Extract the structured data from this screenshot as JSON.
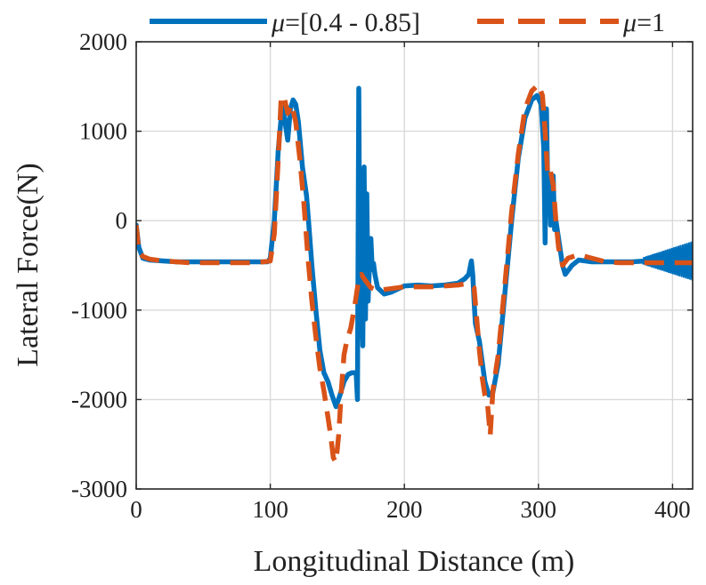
{
  "chart_data": {
    "type": "line",
    "title": "",
    "xlabel": "Longitudinal Distance (m)",
    "ylabel": "Lateral Force(N)",
    "xlim": [
      0,
      415
    ],
    "ylim": [
      -3000,
      2000
    ],
    "xticks": [
      0,
      100,
      200,
      300,
      400
    ],
    "xtick_labels": [
      "0",
      "100",
      "200",
      "300",
      "400"
    ],
    "yticks": [
      -3000,
      -2000,
      -1000,
      0,
      1000,
      2000
    ],
    "ytick_labels": [
      "-3000",
      "-2000",
      "-1000",
      "0",
      "1000",
      "2000"
    ],
    "grid": true,
    "legend_position": "top",
    "series": [
      {
        "name": "μ=[0.4 - 0.85]",
        "legend_symbol": "μ",
        "legend_text": "=[0.4 - 0.85]",
        "style": "solid",
        "color": "#0072BD",
        "x": [
          0,
          2,
          5,
          10,
          20,
          30,
          40,
          50,
          60,
          70,
          80,
          90,
          98,
          100,
          103,
          106,
          109,
          111,
          113,
          115,
          117,
          119,
          121,
          124,
          127,
          129,
          131,
          134,
          137,
          140,
          143,
          146,
          149,
          152,
          155,
          158,
          161,
          164,
          165,
          166,
          167,
          168,
          169,
          170,
          171,
          172,
          173,
          174,
          175,
          176,
          177,
          178,
          180,
          185,
          190,
          200,
          210,
          220,
          230,
          240,
          245,
          248,
          250,
          251,
          252,
          253,
          256,
          260,
          263,
          266,
          270,
          275,
          280,
          285,
          290,
          295,
          299,
          302,
          304,
          305,
          306,
          307,
          308,
          309,
          310,
          311,
          312,
          313,
          315,
          318,
          320,
          325,
          330,
          340,
          350,
          360,
          370,
          380,
          390,
          400,
          410,
          415
        ],
        "y": [
          -50,
          -300,
          -420,
          -440,
          -450,
          -460,
          -460,
          -460,
          -460,
          -460,
          -460,
          -460,
          -460,
          -420,
          0,
          800,
          1300,
          1100,
          900,
          1250,
          1350,
          1300,
          1100,
          600,
          280,
          -100,
          -500,
          -1000,
          -1450,
          -1700,
          -1800,
          -1950,
          -2080,
          -1950,
          -1800,
          -1720,
          -1700,
          -1700,
          -2000,
          1480,
          -1300,
          300,
          -1400,
          600,
          -1100,
          300,
          -900,
          -500,
          -200,
          -550,
          -480,
          -600,
          -750,
          -820,
          -800,
          -730,
          -720,
          -730,
          -720,
          -700,
          -650,
          -600,
          -450,
          -600,
          -900,
          -1150,
          -1350,
          -1800,
          -1950,
          -1920,
          -1600,
          -800,
          0,
          700,
          1150,
          1350,
          1400,
          1300,
          800,
          -250,
          1250,
          300,
          500,
          -50,
          300,
          500,
          -100,
          0,
          -200,
          -500,
          -600,
          -500,
          -440,
          -460,
          -460,
          -460,
          -460,
          -450,
          -460,
          -450,
          -460,
          -460
        ]
      },
      {
        "name": "μ=1",
        "legend_symbol": "μ",
        "legend_text": "=1",
        "style": "dashed",
        "color": "#D95319",
        "x": [
          0,
          2,
          5,
          10,
          20,
          30,
          40,
          50,
          60,
          70,
          80,
          90,
          100,
          103,
          106,
          108,
          110,
          113,
          116,
          119,
          122,
          125,
          128,
          131,
          134,
          137,
          140,
          143,
          145,
          147,
          149,
          151,
          153,
          155,
          157,
          160,
          163,
          166,
          168,
          170,
          175,
          180,
          190,
          200,
          210,
          220,
          230,
          240,
          248,
          252,
          254,
          256,
          258,
          260,
          262,
          264,
          266,
          268,
          270,
          275,
          280,
          285,
          290,
          295,
          300,
          303,
          305,
          307,
          309,
          311,
          313,
          315,
          318,
          322,
          330,
          340,
          350,
          360,
          380,
          400,
          415
        ],
        "y": [
          -50,
          -350,
          -400,
          -430,
          -450,
          -460,
          -470,
          -470,
          -470,
          -470,
          -470,
          -470,
          -450,
          -150,
          700,
          1350,
          1400,
          1200,
          1300,
          1100,
          700,
          200,
          -400,
          -900,
          -1300,
          -1650,
          -1900,
          -2200,
          -2400,
          -2650,
          -2700,
          -2400,
          -1900,
          -1500,
          -1350,
          -1200,
          -950,
          -650,
          -600,
          -650,
          -750,
          -780,
          -760,
          -740,
          -740,
          -740,
          -730,
          -720,
          -700,
          -750,
          -1100,
          -1450,
          -1750,
          -1950,
          -2050,
          -2400,
          -1900,
          -1700,
          -1500,
          -700,
          100,
          750,
          1250,
          1450,
          1520,
          1400,
          1000,
          500,
          550,
          400,
          0,
          -300,
          -500,
          -420,
          -380,
          -420,
          -460,
          -470,
          -470,
          -470,
          -470
        ]
      }
    ]
  }
}
